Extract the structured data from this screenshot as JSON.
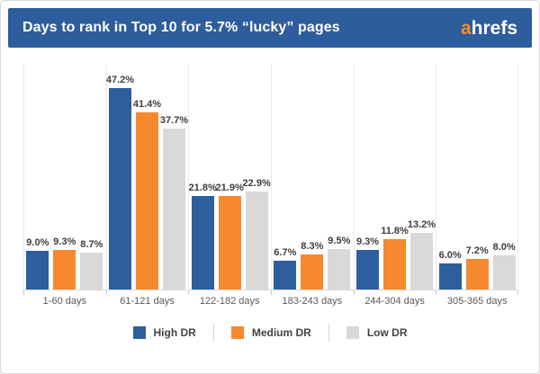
{
  "header": {
    "title": "Days to rank in Top 10 for 5.7% “lucky” pages",
    "logo": {
      "accent": "a",
      "rest": "hrefs"
    }
  },
  "colors": {
    "header_bg": "#2e5d9d",
    "title_text": "#ffffff",
    "logo_accent": "#f18b33",
    "gridline": "#ebebeb",
    "axis_line": "#d9d9d9",
    "value_label": "#3d3d3d",
    "category_label": "#595959"
  },
  "chart_data": {
    "type": "bar",
    "title": "Days to rank in Top 10 for 5.7% “lucky” pages",
    "categories": [
      "1-60 days",
      "61-121 days",
      "122-182 days",
      "183-243 days",
      "244-304 days",
      "305-365 days"
    ],
    "series": [
      {
        "name": "High DR",
        "color": "#2d5f9e",
        "values": [
          9.0,
          47.2,
          21.8,
          6.7,
          9.3,
          6.0
        ]
      },
      {
        "name": "Medium DR",
        "color": "#f6882e",
        "values": [
          9.3,
          41.4,
          21.9,
          8.3,
          11.8,
          7.2
        ]
      },
      {
        "name": "Low DR",
        "color": "#d9d9d9",
        "values": [
          8.7,
          37.7,
          22.9,
          9.5,
          13.2,
          8.0
        ]
      }
    ],
    "value_suffix": "%",
    "xlabel": "",
    "ylabel": "",
    "ylim": [
      0,
      53
    ],
    "grid": "vertical group separators only",
    "legend_position": "bottom-center"
  },
  "legend": {
    "items": [
      "High DR",
      "Medium DR",
      "Low DR"
    ]
  }
}
